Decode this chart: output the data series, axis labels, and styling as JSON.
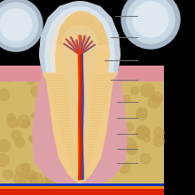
{
  "bg_color": "#000000",
  "tooth_dentin": "#f0cc88",
  "enamel_color": "#c0d0e0",
  "enamel_inner": "#d8e4ee",
  "enamel_highlight": "#e8eef8",
  "gum_color": "#e0909a",
  "bone_color": "#d4b86a",
  "bone_dark": "#c0a050",
  "pulp_color": "#eacc90",
  "pdl_color": "#dda0a8",
  "nerve_red": "#cc2200",
  "nerve_red2": "#ee3300",
  "nerve_blue": "#2244cc",
  "nerve_orange": "#ff9900",
  "nerve_yellow": "#ffdd00",
  "adj_tooth_outer": "#a8b8c8",
  "adj_tooth_inner": "#c8d8e4",
  "adj_tooth_white": "#dde8f0",
  "line_color": "#707070",
  "bottom_red": "#dd2200",
  "bottom_orange": "#ff8800",
  "bottom_blue": "#1133bb",
  "dentin_tubule": "#c8a050"
}
